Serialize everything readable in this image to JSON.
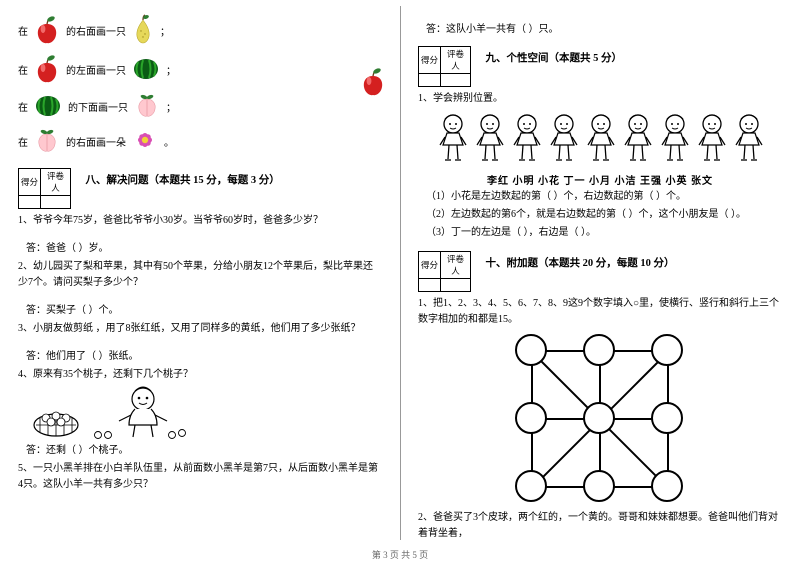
{
  "footer": "第 3 页 共 5 页",
  "scorebox": {
    "score": "得分",
    "reviewer": "评卷人"
  },
  "left": {
    "fruit_rows": [
      {
        "pre": "在",
        "mid": "的右面画一只",
        "post": "；",
        "a": "apple",
        "b": "pear"
      },
      {
        "pre": "在",
        "mid": "的左面画一只",
        "post": "；",
        "a": "apple",
        "b": "melon"
      },
      {
        "pre": "在",
        "mid": "的下面画一只",
        "post": "；",
        "a": "melon",
        "b": "peach"
      },
      {
        "pre": "在",
        "mid": "的右面画一朵",
        "post": "。",
        "a": "peach",
        "b": "flower"
      }
    ],
    "float_apple": true,
    "sect8": "八、解决问题（本题共 15 分，每题 3 分）",
    "q1": "1、爷爷今年75岁，爸爸比爷爷小30岁。当爷爷60岁时，爸爸多少岁？",
    "a1": "答：爸爸（  ）岁。",
    "q2": "2、幼儿园买了梨和苹果，其中有50个苹果，分给小朋友12个苹果后，梨比苹果还少7个。请问买梨子多少个？",
    "a2": "答：买梨子（    ）个。",
    "q3": "3、小朋友做剪纸 ，用了8张红纸，又用了同样多的黄纸，他们用了多少张纸？",
    "a3": "答：他们用了（   ）张纸。",
    "q4": "4、原来有35个桃子，还剩下几个桃子？",
    "a4": "答：还剩（    ）个桃子。",
    "q5": "5、一只小黑羊排在小白羊队伍里，从前面数小黑羊是第7只，从后面数小黑羊是第4只。这队小羊一共有多少只？"
  },
  "right": {
    "a5": "答：这队小羊一共有（    ）只。",
    "sect9": "九、个性空间（本题共 5 分）",
    "q9_intro": "1、学会辨别位置。",
    "names": "李红  小明   小花  丁一   小月  小洁  王强   小英  张文",
    "q9_1": "（1）小花是左边数起的第（    ）个，右边数起的第（    ）个。",
    "q9_2": "（2）左边数起的第6个，就是右边数起的第（     ）个，这个小朋友是（     ）。",
    "q9_3": "（3）丁一的左边是（    ），右边是（    ）。",
    "sect10": "十、附加题（本题共 20 分，每题 10 分）",
    "q10_1": "1、把1、2、3、4、5、6、7、8、9这9个数字填入○里，使横行、竖行和斜行上三个数字相加的和都是15。",
    "q10_2": "2、爸爸买了3个皮球，两个红的，一个黄的。哥哥和妹妹都想要。爸爸叫他们背对着背坐着，"
  },
  "colors": {
    "apple": "#d42020",
    "leaf": "#2e7d32",
    "pear": "#e6d85a",
    "melon_dark": "#0a5c14",
    "melon_light": "#2aa52a",
    "peach": "#ffc8cf",
    "flower": "#d94fb3",
    "flower_c": "#f2d335"
  }
}
